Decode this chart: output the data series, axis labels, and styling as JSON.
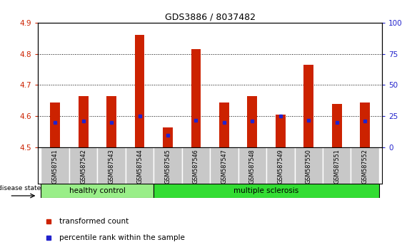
{
  "title": "GDS3886 / 8037482",
  "samples": [
    "GSM587541",
    "GSM587542",
    "GSM587543",
    "GSM587544",
    "GSM587545",
    "GSM587546",
    "GSM587547",
    "GSM587548",
    "GSM587549",
    "GSM587550",
    "GSM587551",
    "GSM587552"
  ],
  "transformed_counts": [
    4.645,
    4.665,
    4.665,
    4.862,
    4.565,
    4.815,
    4.645,
    4.665,
    4.605,
    4.765,
    4.64,
    4.645
  ],
  "percentile_ranks": [
    20,
    21,
    20,
    25,
    10,
    22,
    20,
    21,
    25,
    22,
    20,
    21
  ],
  "ylim_left": [
    4.5,
    4.9
  ],
  "ylim_right": [
    0,
    100
  ],
  "yticks_left": [
    4.5,
    4.6,
    4.7,
    4.8,
    4.9
  ],
  "yticks_right": [
    0,
    25,
    50,
    75,
    100
  ],
  "ytick_labels_right": [
    "0",
    "25",
    "50",
    "75",
    "100%"
  ],
  "bar_color": "#cc2200",
  "percentile_color": "#2222cc",
  "healthy_control_count": 4,
  "group_labels": [
    "healthy control",
    "multiple sclerosis"
  ],
  "hc_color": "#99ee88",
  "ms_color": "#33dd33",
  "legend_items": [
    "transformed count",
    "percentile rank within the sample"
  ],
  "legend_colors": [
    "#cc2200",
    "#2222cc"
  ],
  "disease_state_label": "disease state",
  "axis_color_left": "#cc2200",
  "axis_color_right": "#2222cc",
  "background_color": "#ffffff",
  "bar_width": 0.35
}
